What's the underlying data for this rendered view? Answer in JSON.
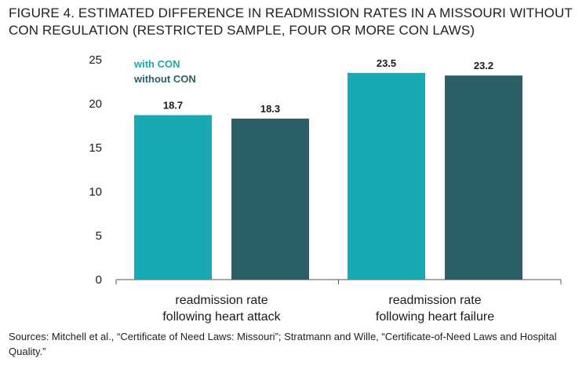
{
  "title": "FIGURE 4. ESTIMATED DIFFERENCE IN READMISSION RATES IN A MISSOURI WITHOUT CON REGULATION (RESTRICTED SAMPLE, FOUR OR MORE CON LAWS)",
  "source": "Sources: Mitchell et al., “Certificate of Need Laws: Missouri”; Stratmann and Wille, “Certificate-of-Need Laws and Hospital Quality.”",
  "colors": {
    "with_con": "#17aab4",
    "without_con": "#2a6065",
    "axis": "#555555",
    "text": "#1a1a1a"
  },
  "chart_data": {
    "type": "bar",
    "categories": [
      [
        "readmission rate",
        "following heart attack"
      ],
      [
        "readmission rate",
        "following heart failure"
      ]
    ],
    "series": [
      {
        "name": "with CON",
        "values": [
          18.7,
          23.5
        ],
        "labels": [
          "18.7",
          "23.5"
        ]
      },
      {
        "name": "without CON",
        "values": [
          18.3,
          23.2
        ],
        "labels": [
          "18.3",
          "23.2"
        ]
      }
    ],
    "ylim": [
      0,
      25
    ],
    "yticks": [
      0,
      5,
      10,
      15,
      20,
      25
    ],
    "legend": "top-left",
    "grid": false,
    "xlabel": "",
    "ylabel": ""
  }
}
